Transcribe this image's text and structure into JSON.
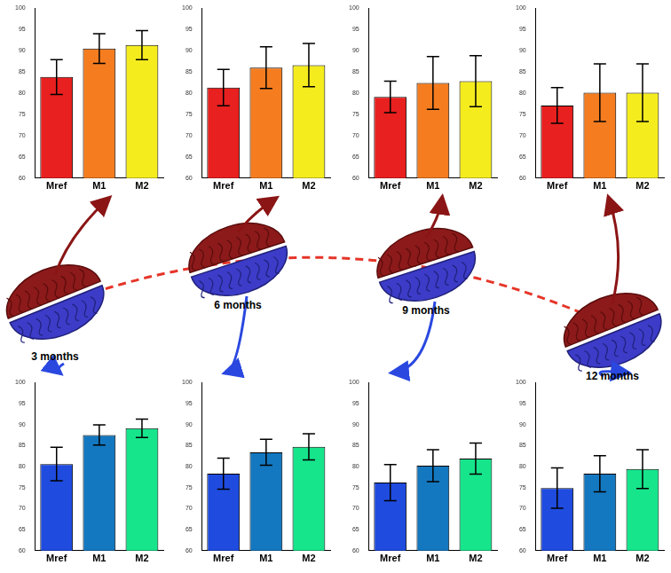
{
  "chart_data": [
    {
      "type": "bar",
      "categories": [
        "Mref",
        "M1",
        "M2"
      ],
      "values": [
        83.8,
        90.5,
        91.3
      ],
      "errors": [
        4.1,
        3.5,
        3.4
      ],
      "colors": [
        "#e8201f",
        "#f57d20",
        "#f5ec1e"
      ],
      "ylim": [
        60,
        100
      ],
      "yticks": [
        60,
        65,
        70,
        75,
        80,
        85,
        90,
        95,
        100
      ],
      "grid": false
    },
    {
      "type": "bar",
      "categories": [
        "Mref",
        "M1",
        "M2"
      ],
      "values": [
        81.3,
        86.0,
        86.6
      ],
      "errors": [
        4.3,
        4.9,
        5.1
      ],
      "colors": [
        "#e8201f",
        "#f57d20",
        "#f5ec1e"
      ],
      "ylim": [
        60,
        100
      ],
      "yticks": [
        60,
        65,
        70,
        75,
        80,
        85,
        90,
        95,
        100
      ],
      "grid": false
    },
    {
      "type": "bar",
      "categories": [
        "Mref",
        "M1",
        "M2"
      ],
      "values": [
        79.1,
        82.4,
        82.8
      ],
      "errors": [
        3.7,
        6.2,
        6.0
      ],
      "colors": [
        "#e8201f",
        "#f57d20",
        "#f5ec1e"
      ],
      "ylim": [
        60,
        100
      ],
      "yticks": [
        60,
        65,
        70,
        75,
        80,
        85,
        90,
        95,
        100
      ],
      "grid": false
    },
    {
      "type": "bar",
      "categories": [
        "Mref",
        "M1",
        "M2"
      ],
      "values": [
        77.1,
        80.1,
        80.1
      ],
      "errors": [
        4.2,
        6.8,
        6.8
      ],
      "colors": [
        "#e8201f",
        "#f57d20",
        "#f5ec1e"
      ],
      "ylim": [
        60,
        100
      ],
      "yticks": [
        60,
        65,
        70,
        75,
        80,
        85,
        90,
        95,
        100
      ],
      "grid": false
    },
    {
      "type": "bar",
      "categories": [
        "Mref",
        "M1",
        "M2"
      ],
      "values": [
        80.6,
        87.5,
        89.1
      ],
      "errors": [
        4.0,
        2.4,
        2.2
      ],
      "colors": [
        "#1f4bdf",
        "#1478c0",
        "#16e58c"
      ],
      "ylim": [
        60,
        100
      ],
      "yticks": [
        60,
        65,
        70,
        75,
        80,
        85,
        90,
        95,
        100
      ],
      "grid": false
    },
    {
      "type": "bar",
      "categories": [
        "Mref",
        "M1",
        "M2"
      ],
      "values": [
        78.3,
        83.4,
        84.7
      ],
      "errors": [
        3.7,
        3.1,
        3.1
      ],
      "colors": [
        "#1f4bdf",
        "#1478c0",
        "#16e58c"
      ],
      "ylim": [
        60,
        100
      ],
      "yticks": [
        60,
        65,
        70,
        75,
        80,
        85,
        90,
        95,
        100
      ],
      "grid": false
    },
    {
      "type": "bar",
      "categories": [
        "Mref",
        "M1",
        "M2"
      ],
      "values": [
        76.2,
        80.2,
        81.9
      ],
      "errors": [
        4.3,
        3.8,
        3.7
      ],
      "colors": [
        "#1f4bdf",
        "#1478c0",
        "#16e58c"
      ],
      "ylim": [
        60,
        100
      ],
      "yticks": [
        60,
        65,
        70,
        75,
        80,
        85,
        90,
        95,
        100
      ],
      "grid": false
    },
    {
      "type": "bar",
      "categories": [
        "Mref",
        "M1",
        "M2"
      ],
      "values": [
        74.9,
        78.3,
        79.4
      ],
      "errors": [
        4.8,
        4.3,
        4.6
      ],
      "colors": [
        "#1f4bdf",
        "#1478c0",
        "#16e58c"
      ],
      "ylim": [
        60,
        100
      ],
      "yticks": [
        60,
        65,
        70,
        75,
        80,
        85,
        90,
        95,
        100
      ],
      "grid": false
    }
  ],
  "timepoints": [
    "3 months",
    "6 months",
    "9 months",
    "12 months"
  ]
}
